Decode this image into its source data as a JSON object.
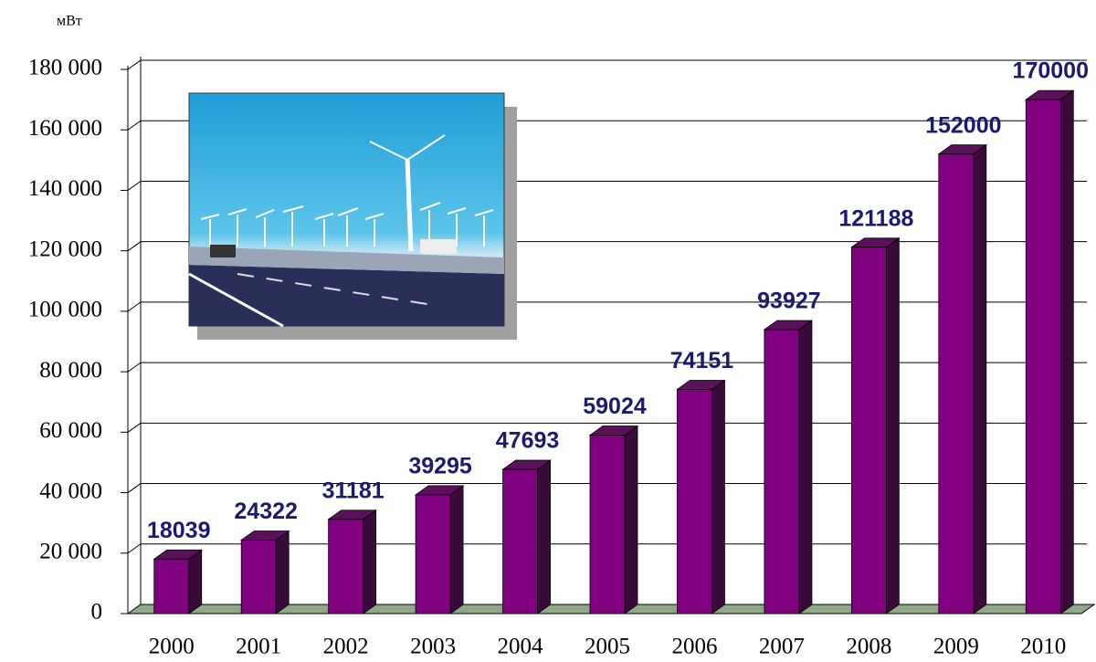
{
  "chart_data": {
    "type": "bar3d",
    "y_label": "мВт",
    "categories": [
      "2000",
      "2001",
      "2002",
      "2003",
      "2004",
      "2005",
      "2006",
      "2007",
      "2008",
      "2009",
      "2010"
    ],
    "values": [
      18039,
      24322,
      31181,
      39295,
      47693,
      59024,
      74151,
      93927,
      121188,
      152000,
      170000
    ],
    "color": "#800080",
    "label_color": "#1a1a6e",
    "ylim": [
      0,
      180000
    ],
    "yticks": [
      0,
      {
        "value": 20000,
        "label": "20 000"
      },
      {
        "value": 40000,
        "label": "40 000"
      },
      {
        "value": 60000,
        "label": "60 000"
      },
      {
        "value": 80000,
        "label": "80 000"
      },
      {
        "value": 100000,
        "label": "100 000"
      },
      {
        "value": 120000,
        "label": "120 000"
      },
      {
        "value": 140000,
        "label": "140 000"
      },
      {
        "value": 160000,
        "label": "160 000"
      },
      {
        "value": 180000,
        "label": "180 000"
      }
    ],
    "grid": true
  }
}
